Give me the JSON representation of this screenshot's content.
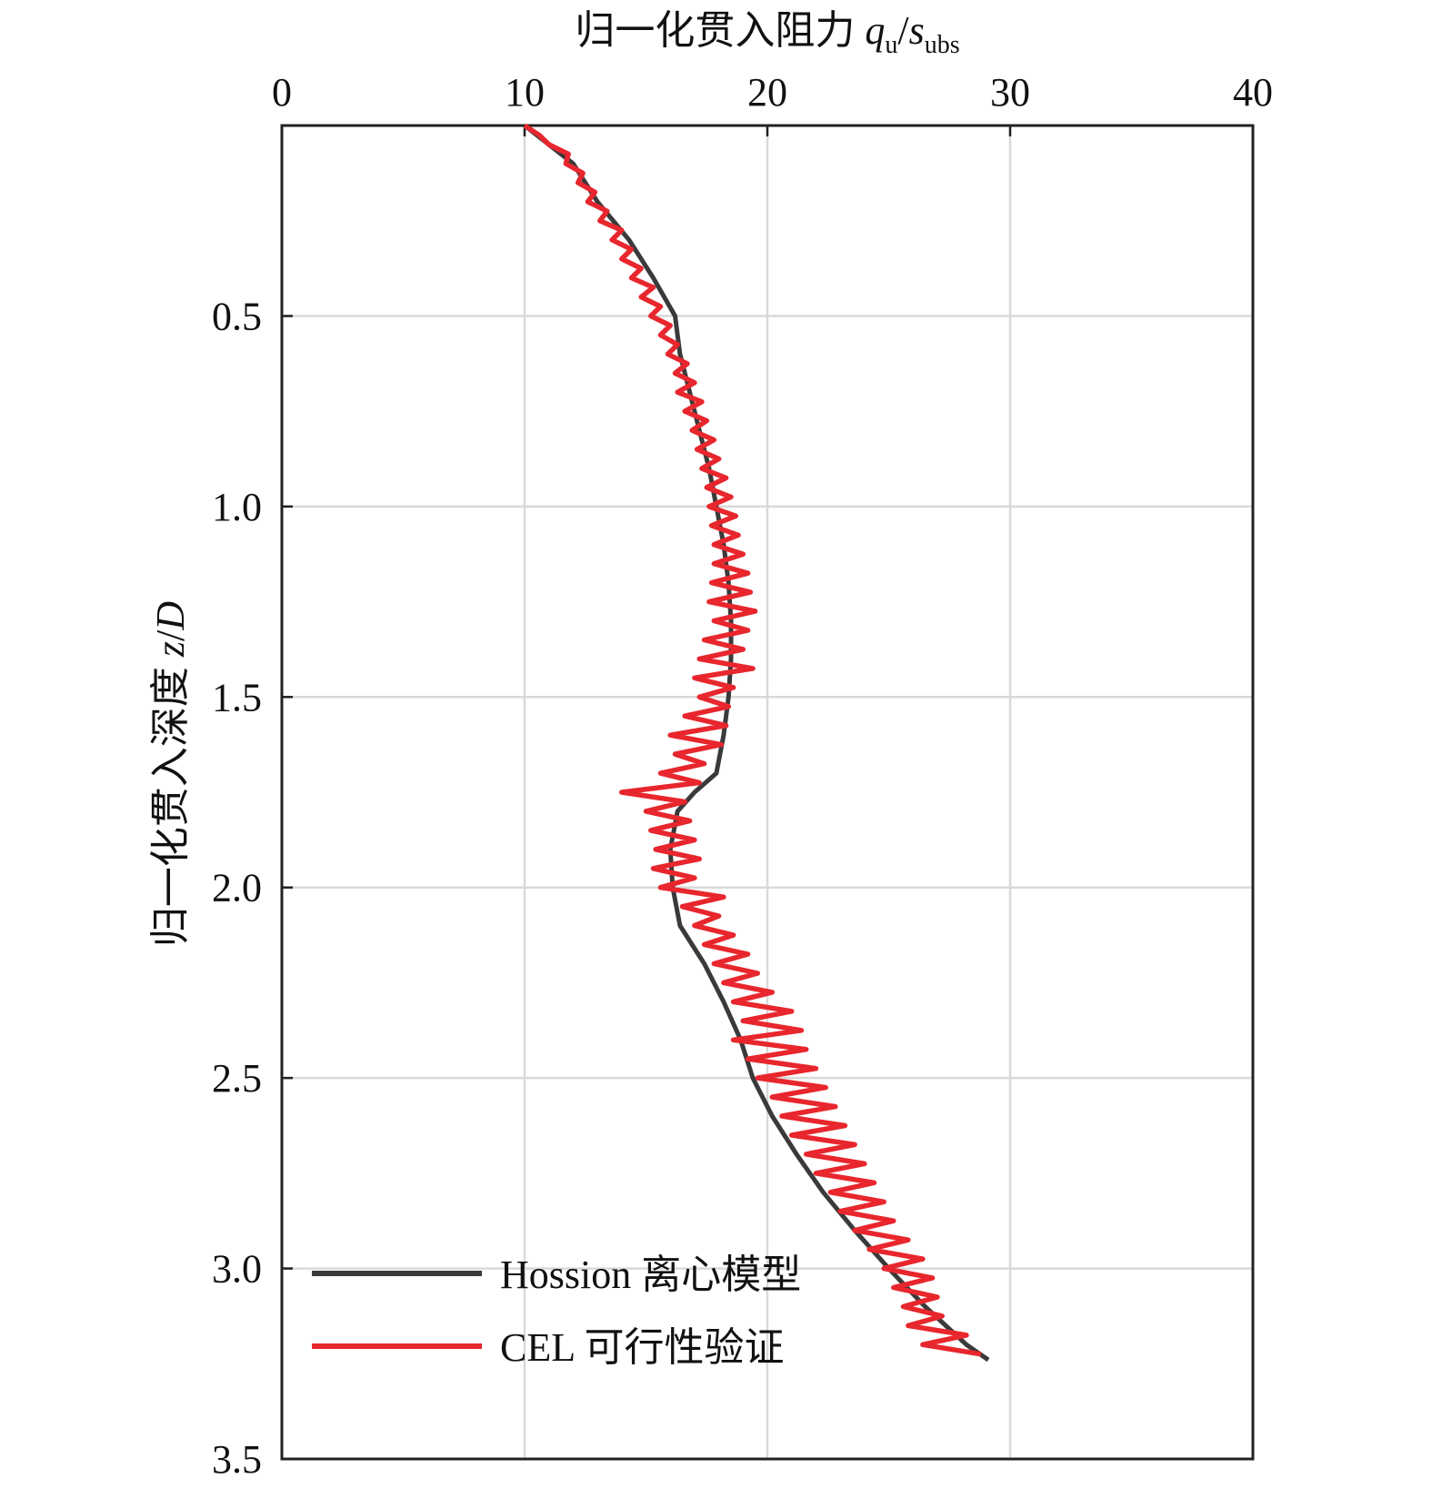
{
  "chart_data": {
    "type": "line",
    "xlabel": [
      "归一化贯入阻力 ",
      "q",
      "u",
      "/",
      "s",
      "ubs"
    ],
    "ylabel": [
      "归一化贯入深度 ",
      "z",
      "/",
      "D"
    ],
    "xlim": [
      0,
      40
    ],
    "xticks": [
      0,
      10,
      20,
      30,
      40
    ],
    "ylim": [
      0,
      3.5
    ],
    "yticks": [
      0.5,
      {
        "value": 1,
        "label": "1.0"
      },
      1.5,
      {
        "value": 2,
        "label": "2.0"
      },
      2.5,
      {
        "value": 3,
        "label": "3.0"
      },
      3.5
    ],
    "y_inverted": true,
    "x_axis_position": "top",
    "grid": true,
    "legend": "lower left",
    "series": [
      {
        "name": "Hossion 离心模型",
        "color": "#3a3a3a",
        "depth": [
          0,
          0.1,
          0.2,
          0.3,
          0.4,
          0.5,
          0.55,
          0.6,
          0.7,
          0.8,
          0.9,
          1.0,
          1.1,
          1.2,
          1.3,
          1.4,
          1.5,
          1.6,
          1.7,
          1.75,
          1.8,
          1.9,
          2.0,
          2.1,
          2.15,
          2.2,
          2.3,
          2.4,
          2.5,
          2.6,
          2.7,
          2.8,
          2.9,
          3.0,
          3.1,
          3.2,
          3.24
        ],
        "values": [
          10,
          12,
          13,
          14.3,
          15.3,
          16.2,
          16.3,
          16.4,
          16.8,
          17.2,
          17.6,
          17.9,
          18.2,
          18.4,
          18.5,
          18.5,
          18.4,
          18.2,
          17.9,
          17,
          16.3,
          16,
          16.1,
          16.4,
          16.9,
          17.4,
          18.2,
          18.9,
          19.4,
          20.2,
          21.2,
          22.3,
          23.6,
          25,
          26.5,
          28.2,
          29.1
        ]
      },
      {
        "name": "CEL 可行性验证",
        "color": "#e8262d",
        "depth": [
          0,
          0.025,
          0.05,
          0.075,
          0.1,
          0.125,
          0.15,
          0.175,
          0.2,
          0.225,
          0.25,
          0.275,
          0.3,
          0.325,
          0.35,
          0.375,
          0.4,
          0.425,
          0.45,
          0.475,
          0.5,
          0.525,
          0.55,
          0.575,
          0.6,
          0.625,
          0.65,
          0.675,
          0.7,
          0.725,
          0.75,
          0.775,
          0.8,
          0.825,
          0.85,
          0.875,
          0.9,
          0.925,
          0.95,
          0.975,
          1.0,
          1.025,
          1.05,
          1.075,
          1.1,
          1.125,
          1.15,
          1.175,
          1.2,
          1.225,
          1.25,
          1.275,
          1.3,
          1.325,
          1.35,
          1.375,
          1.4,
          1.425,
          1.45,
          1.475,
          1.5,
          1.525,
          1.55,
          1.575,
          1.6,
          1.625,
          1.65,
          1.675,
          1.7,
          1.725,
          1.75,
          1.775,
          1.8,
          1.825,
          1.85,
          1.875,
          1.9,
          1.925,
          1.95,
          1.975,
          2.0,
          2.025,
          2.05,
          2.075,
          2.1,
          2.125,
          2.15,
          2.175,
          2.2,
          2.225,
          2.25,
          2.275,
          2.3,
          2.325,
          2.35,
          2.375,
          2.4,
          2.425,
          2.45,
          2.475,
          2.5,
          2.525,
          2.55,
          2.575,
          2.6,
          2.625,
          2.65,
          2.675,
          2.7,
          2.725,
          2.75,
          2.775,
          2.8,
          2.825,
          2.85,
          2.875,
          2.9,
          2.925,
          2.95,
          2.975,
          3.0,
          3.025,
          3.05,
          3.075,
          3.1,
          3.125,
          3.15,
          3.175,
          3.2,
          3.225
        ],
        "values": [
          10,
          10.6,
          11,
          11.8,
          11.7,
          12.4,
          12.2,
          12.9,
          12.6,
          13.4,
          13.1,
          14,
          13.6,
          14.4,
          14,
          14.8,
          14.4,
          15.3,
          14.8,
          15.6,
          15.2,
          16,
          15.6,
          16.3,
          15.9,
          16.7,
          16.2,
          17,
          16.3,
          17.3,
          16.6,
          17.5,
          16.9,
          17.8,
          17.1,
          18,
          17.3,
          18.3,
          17.5,
          18.5,
          17.6,
          18.7,
          17.7,
          18.8,
          17.8,
          19,
          17.8,
          19.2,
          17.7,
          19.3,
          17.6,
          19.5,
          17.8,
          19.2,
          17.4,
          19,
          17.2,
          19.4,
          17,
          18.6,
          17.2,
          18.4,
          16.6,
          18.3,
          16,
          18.1,
          16.2,
          17.4,
          15.6,
          17.2,
          14,
          16.6,
          15,
          16.8,
          15.2,
          17,
          15.4,
          17.2,
          15.3,
          17,
          15.6,
          18.2,
          16.5,
          18,
          17,
          18.6,
          17.4,
          19.2,
          17.8,
          19.6,
          18.2,
          20.2,
          18.6,
          21,
          19,
          21.4,
          18.6,
          21.6,
          19.2,
          22,
          19.6,
          22.4,
          20.2,
          22.8,
          20.6,
          23.2,
          21,
          23.6,
          21.6,
          24,
          22,
          24.4,
          22.6,
          24.8,
          23,
          25.2,
          23.6,
          25.8,
          24.2,
          26.4,
          24.8,
          26.8,
          25.2,
          27,
          25.6,
          27.2,
          25.8,
          28.2,
          26.4,
          28.8
        ]
      }
    ]
  }
}
